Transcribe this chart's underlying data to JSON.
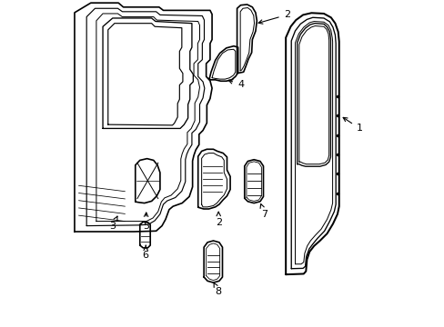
{
  "bg_color": "#ffffff",
  "line_color": "#000000",
  "line_width": 1.2,
  "fig_width": 4.89,
  "fig_height": 3.6,
  "dpi": 100
}
